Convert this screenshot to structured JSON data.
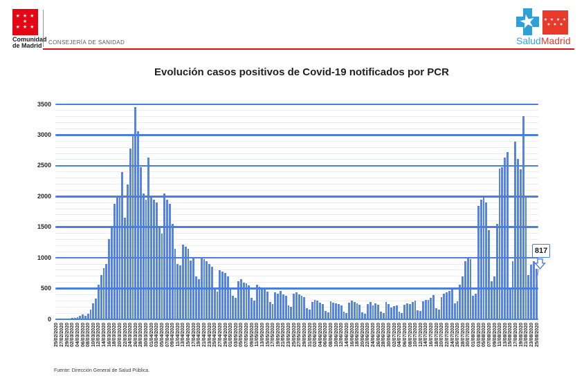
{
  "header": {
    "org_line1": "Comunidad",
    "org_line2": "de Madrid",
    "stars_row1": "★ ★ ★ ★",
    "stars_row2": "★ ★ ★",
    "department": "CONSEJERÍA DE SANIDAD",
    "salud_word": "Salud",
    "madrid_word": "Madrid",
    "accent_red": "#e30613",
    "salud_blue": "#29a8df"
  },
  "chart_data": {
    "type": "bar",
    "title": "Evolución casos positivos de Covid-19 notificados por PCR",
    "ylim": [
      0,
      3500
    ],
    "ytick_step": 500,
    "minor_grid_step": 100,
    "xlabel_every": 2,
    "bar_color": "#5584e4",
    "grid_color": "#4a7de2",
    "minor_grid_color": "#ececec",
    "legend": "none",
    "annotation": {
      "label": "817",
      "index": 182
    },
    "x": [
      "25/02/2020",
      "26/02/2020",
      "27/02/2020",
      "28/02/2020",
      "29/02/2020",
      "01/03/2020",
      "02/03/2020",
      "03/03/2020",
      "04/03/2020",
      "05/03/2020",
      "06/03/2020",
      "07/03/2020",
      "08/03/2020",
      "09/03/2020",
      "10/03/2020",
      "11/03/2020",
      "12/03/2020",
      "13/03/2020",
      "14/03/2020",
      "15/03/2020",
      "16/03/2020",
      "17/03/2020",
      "18/03/2020",
      "19/03/2020",
      "20/03/2020",
      "21/03/2020",
      "22/03/2020",
      "23/03/2020",
      "24/03/2020",
      "25/03/2020",
      "26/03/2020",
      "27/03/2020",
      "28/03/2020",
      "29/03/2020",
      "30/03/2020",
      "31/03/2020",
      "01/04/2020",
      "02/04/2020",
      "03/04/2020",
      "04/04/2020",
      "05/04/2020",
      "06/04/2020",
      "07/04/2020",
      "08/04/2020",
      "09/04/2020",
      "10/04/2020",
      "11/04/2020",
      "12/04/2020",
      "13/04/2020",
      "14/04/2020",
      "15/04/2020",
      "16/04/2020",
      "17/04/2020",
      "18/04/2020",
      "19/04/2020",
      "20/04/2020",
      "21/04/2020",
      "22/04/2020",
      "23/04/2020",
      "24/04/2020",
      "25/04/2020",
      "26/04/2020",
      "27/04/2020",
      "28/04/2020",
      "29/04/2020",
      "30/04/2020",
      "01/05/2020",
      "02/05/2020",
      "03/05/2020",
      "04/05/2020",
      "05/05/2020",
      "06/05/2020",
      "07/05/2020",
      "08/05/2020",
      "09/05/2020",
      "10/05/2020",
      "11/05/2020",
      "12/05/2020",
      "13/05/2020",
      "14/05/2020",
      "15/05/2020",
      "16/05/2020",
      "17/05/2020",
      "18/05/2020",
      "19/05/2020",
      "20/05/2020",
      "21/05/2020",
      "22/05/2020",
      "23/05/2020",
      "24/05/2020",
      "25/05/2020",
      "26/05/2020",
      "27/05/2020",
      "28/05/2020",
      "29/05/2020",
      "30/05/2020",
      "31/05/2020",
      "01/06/2020",
      "02/06/2020",
      "03/06/2020",
      "04/06/2020",
      "05/06/2020",
      "06/06/2020",
      "07/06/2020",
      "08/06/2020",
      "09/06/2020",
      "10/06/2020",
      "11/06/2020",
      "12/06/2020",
      "13/06/2020",
      "14/06/2020",
      "15/06/2020",
      "16/06/2020",
      "17/06/2020",
      "18/06/2020",
      "19/06/2020",
      "20/06/2020",
      "21/06/2020",
      "22/06/2020",
      "23/06/2020",
      "24/06/2020",
      "25/06/2020",
      "26/06/2020",
      "27/06/2020",
      "28/06/2020",
      "29/06/2020",
      "30/06/2020",
      "01/07/2020",
      "02/07/2020",
      "03/07/2020",
      "04/07/2020",
      "05/07/2020",
      "06/07/2020",
      "07/07/2020",
      "08/07/2020",
      "09/07/2020",
      "10/07/2020",
      "11/07/2020",
      "12/07/2020",
      "13/07/2020",
      "14/07/2020",
      "15/07/2020",
      "16/07/2020",
      "17/07/2020",
      "18/07/2020",
      "19/07/2020",
      "20/07/2020",
      "21/07/2020",
      "22/07/2020",
      "23/07/2020",
      "24/07/2020",
      "25/07/2020",
      "26/07/2020",
      "27/07/2020",
      "28/07/2020",
      "29/07/2020",
      "30/07/2020",
      "31/07/2020",
      "01/08/2020",
      "02/08/2020",
      "03/08/2020",
      "04/08/2020",
      "05/08/2020",
      "06/08/2020",
      "07/08/2020",
      "08/08/2020",
      "09/08/2020",
      "10/08/2020",
      "11/08/2020",
      "12/08/2020",
      "13/08/2020",
      "14/08/2020",
      "15/08/2020",
      "16/08/2020",
      "17/08/2020",
      "18/08/2020",
      "19/08/2020",
      "20/08/2020",
      "21/08/2020",
      "22/08/2020",
      "23/08/2020",
      "24/08/2020",
      "25/08/2020"
    ],
    "values": [
      2,
      3,
      4,
      6,
      9,
      14,
      20,
      28,
      38,
      55,
      75,
      62,
      90,
      160,
      262,
      340,
      560,
      720,
      830,
      900,
      1310,
      1500,
      1880,
      2010,
      1990,
      2400,
      1650,
      2200,
      2780,
      2990,
      3460,
      3060,
      2480,
      2050,
      1950,
      2630,
      1980,
      1950,
      1900,
      1500,
      1400,
      2050,
      1950,
      1880,
      1550,
      1150,
      900,
      880,
      1220,
      1180,
      1150,
      960,
      1000,
      700,
      650,
      1000,
      980,
      950,
      900,
      850,
      500,
      450,
      800,
      780,
      750,
      700,
      480,
      380,
      350,
      620,
      650,
      600,
      580,
      550,
      350,
      300,
      560,
      530,
      500,
      480,
      450,
      280,
      250,
      440,
      420,
      460,
      400,
      380,
      220,
      200,
      420,
      440,
      400,
      380,
      360,
      180,
      160,
      280,
      310,
      300,
      270,
      250,
      130,
      110,
      290,
      270,
      260,
      250,
      230,
      120,
      100,
      270,
      300,
      280,
      260,
      240,
      110,
      95,
      250,
      280,
      230,
      260,
      240,
      120,
      100,
      280,
      250,
      190,
      210,
      230,
      120,
      100,
      240,
      260,
      250,
      280,
      300,
      150,
      130,
      290,
      320,
      310,
      350,
      390,
      180,
      160,
      360,
      420,
      440,
      460,
      515,
      260,
      290,
      560,
      700,
      950,
      1000,
      980,
      380,
      420,
      1850,
      1950,
      2010,
      1900,
      1450,
      620,
      700,
      1550,
      2450,
      2480,
      2630,
      2720,
      490,
      940,
      2890,
      2610,
      2440,
      3305,
      1990,
      715,
      885,
      950,
      817
    ]
  },
  "footer": {
    "source": "Fuente: Dirección General de Salud Pública."
  }
}
